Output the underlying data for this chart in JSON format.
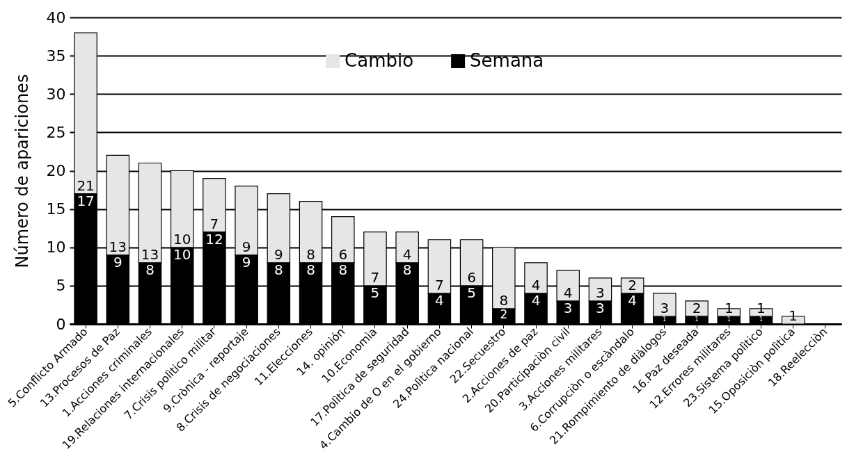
{
  "chart_data": {
    "type": "bar",
    "stacked": true,
    "ylabel": "Número de apariciones",
    "categories": [
      "5.Conflicto Armado",
      "13.Procesos de Paz",
      "1.Acciones criminales",
      "19.Relaciones internacionales",
      "7.Crisis polìtico militar",
      "9.Crònica - reportaje",
      "8.Crisis de negociaciones",
      "11.Elecciones",
      "14. opinión",
      "10.Economìa",
      "17.Polìtica de seguridad",
      "4.Cambio de O en el gobierno",
      "24.Polìtica nacional",
      "22.Secuestro",
      "2.Acciones de paz",
      "20.Participaciòn civil",
      "3.Acciones   militares",
      "6.Corrupciòn o escàndalo",
      "21.Rompimiento de diàlogos",
      "16.Paz deseada",
      "12.Errores militares",
      "23.Sistema polìtico",
      "15.Oposiciòn polìtica",
      "18.Reelecciòn"
    ],
    "series": [
      {
        "name": "Semana",
        "color": "#000000",
        "values": [
          17,
          9,
          8,
          10,
          12,
          9,
          8,
          8,
          8,
          5,
          8,
          4,
          5,
          2,
          4,
          3,
          3,
          4,
          1,
          1,
          1,
          1,
          0,
          0
        ],
        "value_labels": [
          "17",
          "9",
          "8",
          "10",
          "12",
          "9",
          "8",
          "8",
          "8",
          "5",
          "8",
          "4",
          "5",
          "2",
          "4",
          "3",
          "3",
          "4",
          "1",
          "1",
          "1",
          "1",
          null,
          null
        ]
      },
      {
        "name": "Cambio",
        "color": "#e6e6e6",
        "values": [
          21,
          13,
          13,
          10,
          7,
          9,
          9,
          8,
          6,
          7,
          4,
          7,
          6,
          8,
          4,
          4,
          3,
          2,
          3,
          2,
          1,
          1,
          1,
          0
        ],
        "value_labels": [
          "21",
          "13",
          "13",
          "10",
          "7",
          "9",
          "9",
          "8",
          "6",
          "7",
          "4",
          "7",
          "6",
          "8",
          "4",
          "4",
          "3",
          "2",
          "3",
          "2",
          "1",
          "1",
          "1",
          null
        ]
      }
    ],
    "ylim": [
      0,
      40
    ],
    "yticks": [
      0,
      5,
      10,
      15,
      20,
      25,
      30,
      35,
      40
    ],
    "grid": "y",
    "legend": "top"
  }
}
